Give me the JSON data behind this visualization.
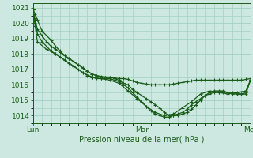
{
  "title": "",
  "xlabel": "Pression niveau de la mer( hPa )",
  "background_color": "#cce8e0",
  "grid_color": "#99ccbb",
  "line_color": "#1a5c1a",
  "ylim": [
    1013.5,
    1021.3
  ],
  "xlim": [
    0,
    48
  ],
  "yticks": [
    1014,
    1015,
    1016,
    1017,
    1018,
    1019,
    1020,
    1021
  ],
  "xticks": [
    0,
    24,
    48
  ],
  "xtick_labels": [
    "Lun",
    "Mar",
    "Mer"
  ],
  "line1_x": [
    0,
    0.5,
    1,
    2,
    3,
    4,
    5,
    6,
    7,
    8,
    9,
    10,
    11,
    12,
    13,
    14,
    15,
    16,
    17,
    18,
    19,
    20,
    21,
    22,
    23,
    24,
    25,
    26,
    27,
    28,
    29,
    30,
    31,
    32,
    33,
    34,
    35,
    36,
    37,
    38,
    39,
    40,
    41,
    42,
    43,
    44,
    45,
    46,
    47,
    48
  ],
  "line1_y": [
    1020.9,
    1020.6,
    1020.2,
    1019.5,
    1019.2,
    1018.9,
    1018.5,
    1018.2,
    1017.9,
    1017.7,
    1017.5,
    1017.3,
    1017.1,
    1016.9,
    1016.7,
    1016.6,
    1016.55,
    1016.5,
    1016.5,
    1016.45,
    1016.4,
    1016.4,
    1016.35,
    1016.25,
    1016.15,
    1016.1,
    1016.05,
    1016.0,
    1016.0,
    1016.0,
    1016.0,
    1016.0,
    1016.05,
    1016.1,
    1016.15,
    1016.2,
    1016.25,
    1016.3,
    1016.3,
    1016.3,
    1016.3,
    1016.3,
    1016.3,
    1016.3,
    1016.3,
    1016.3,
    1016.3,
    1016.3,
    1016.35,
    1016.4
  ],
  "line2_x": [
    0,
    0.5,
    1,
    2,
    3,
    4,
    5,
    6,
    7,
    8,
    9,
    10,
    11,
    12,
    13,
    14,
    15,
    16,
    17,
    18,
    19,
    20,
    21,
    22,
    23,
    24,
    25,
    26,
    27,
    28,
    29,
    30,
    31,
    32,
    33,
    34,
    35,
    36,
    37,
    38,
    39,
    40,
    41,
    42,
    43,
    44,
    45,
    46,
    47,
    48
  ],
  "line2_y": [
    1020.9,
    1020.2,
    1019.6,
    1019.2,
    1018.8,
    1018.5,
    1018.3,
    1018.1,
    1017.9,
    1017.7,
    1017.5,
    1017.3,
    1017.1,
    1016.9,
    1016.7,
    1016.6,
    1016.5,
    1016.5,
    1016.5,
    1016.4,
    1016.3,
    1016.1,
    1016.0,
    1015.7,
    1015.5,
    1015.3,
    1015.1,
    1014.9,
    1014.7,
    1014.5,
    1014.2,
    1014.0,
    1014.0,
    1014.0,
    1014.1,
    1014.2,
    1014.4,
    1014.7,
    1015.0,
    1015.3,
    1015.5,
    1015.6,
    1015.6,
    1015.6,
    1015.5,
    1015.5,
    1015.4,
    1015.4,
    1015.4,
    1016.3
  ],
  "line3_x": [
    0,
    0.5,
    1,
    2,
    3,
    4,
    5,
    6,
    7,
    8,
    9,
    10,
    11,
    12,
    13,
    14,
    15,
    16,
    17,
    18,
    19,
    20,
    21,
    22,
    23,
    24,
    25,
    26,
    27,
    28,
    29,
    30,
    31,
    32,
    33,
    34,
    35,
    36,
    37,
    38,
    39,
    40,
    41,
    42,
    43,
    44,
    45,
    46,
    47,
    48
  ],
  "line3_y": [
    1020.9,
    1020.0,
    1019.3,
    1018.8,
    1018.5,
    1018.2,
    1018.0,
    1017.8,
    1017.6,
    1017.4,
    1017.2,
    1017.0,
    1016.8,
    1016.6,
    1016.5,
    1016.4,
    1016.4,
    1016.4,
    1016.4,
    1016.3,
    1016.2,
    1016.0,
    1015.8,
    1015.5,
    1015.2,
    1014.9,
    1014.6,
    1014.3,
    1014.1,
    1014.0,
    1013.9,
    1013.9,
    1014.0,
    1014.1,
    1014.2,
    1014.4,
    1014.7,
    1014.9,
    1015.1,
    1015.3,
    1015.4,
    1015.5,
    1015.5,
    1015.5,
    1015.5,
    1015.4,
    1015.4,
    1015.4,
    1015.5,
    1016.3
  ],
  "line4_x": [
    0,
    0.5,
    1,
    3,
    5,
    7,
    9,
    11,
    13,
    15,
    17,
    19,
    21,
    23,
    25,
    27,
    29,
    31,
    33,
    35,
    37,
    39,
    41,
    43,
    45,
    47,
    48
  ],
  "line4_y": [
    1020.9,
    1019.8,
    1018.8,
    1018.3,
    1018.0,
    1017.6,
    1017.2,
    1016.8,
    1016.5,
    1016.4,
    1016.3,
    1016.1,
    1015.6,
    1015.1,
    1014.6,
    1014.2,
    1014.0,
    1014.1,
    1014.5,
    1014.9,
    1015.4,
    1015.6,
    1015.5,
    1015.4,
    1015.5,
    1015.6,
    1016.3
  ]
}
